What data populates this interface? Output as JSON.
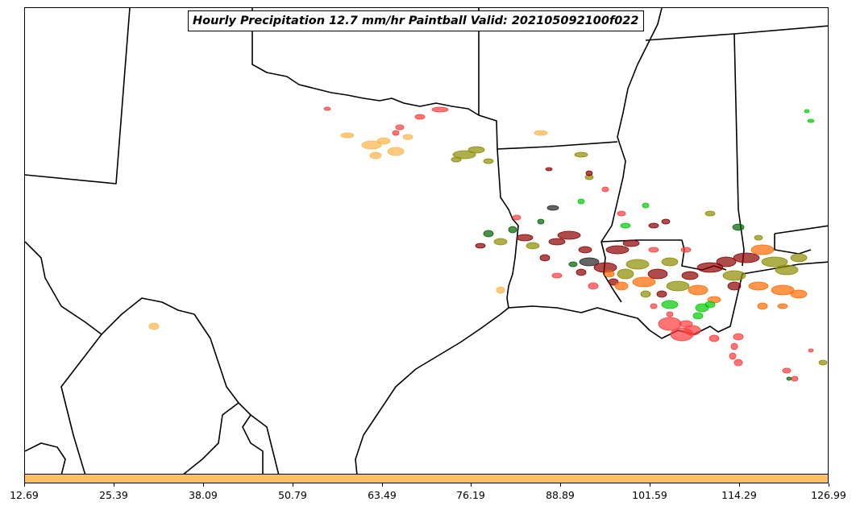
{
  "title": "Hourly Precipitation 12.7 mm/hr Paintball Valid: 202105092100f022",
  "colors": {
    "orange": "#ffb347",
    "dark_orange": "#ff6a00",
    "red": "#ff3b3b",
    "dark_red": "#8b0000",
    "olive": "#8b8b00",
    "green": "#00cc00",
    "dark_green": "#006400",
    "black": "#222222",
    "colorbar_fill": "#ffbf63"
  },
  "colorbar": {
    "ticks": [
      "12.69",
      "25.39",
      "38.09",
      "50.79",
      "63.49",
      "76.19",
      "88.89",
      "101.59",
      "114.29",
      "126.99"
    ]
  }
}
